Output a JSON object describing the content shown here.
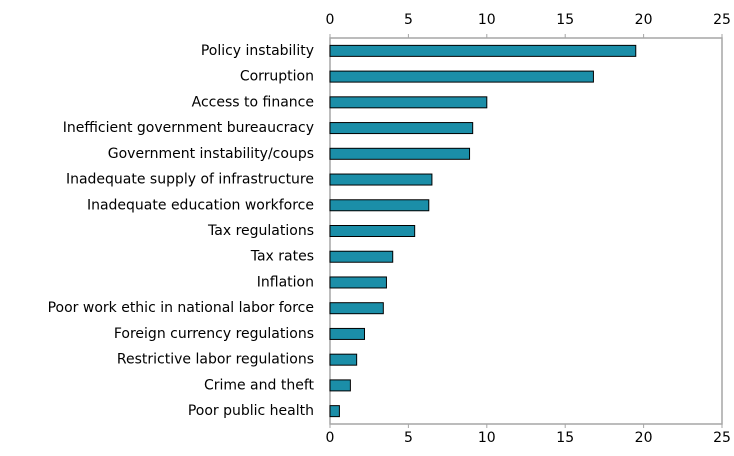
{
  "chart_data": {
    "type": "barh",
    "categories": [
      "Policy instability",
      "Corruption",
      "Access to finance",
      "Inefficient government bureaucracy",
      "Government instability/coups",
      "Inadequate supply of infrastructure",
      "Inadequate education workforce",
      "Tax regulations",
      "Tax rates",
      "Inflation",
      "Poor work ethic in national labor force",
      "Foreign currency regulations",
      "Restrictive labor regulations",
      "Crime and theft",
      "Poor public health"
    ],
    "values": [
      19.5,
      16.8,
      10.0,
      9.1,
      8.9,
      6.5,
      6.3,
      5.4,
      4.0,
      3.6,
      3.4,
      2.2,
      1.7,
      1.3,
      0.6
    ],
    "color": "#1b8ea8",
    "xlim": [
      0,
      25
    ],
    "xticks": [
      0,
      5,
      10,
      15,
      20,
      25
    ],
    "grid": false
  }
}
